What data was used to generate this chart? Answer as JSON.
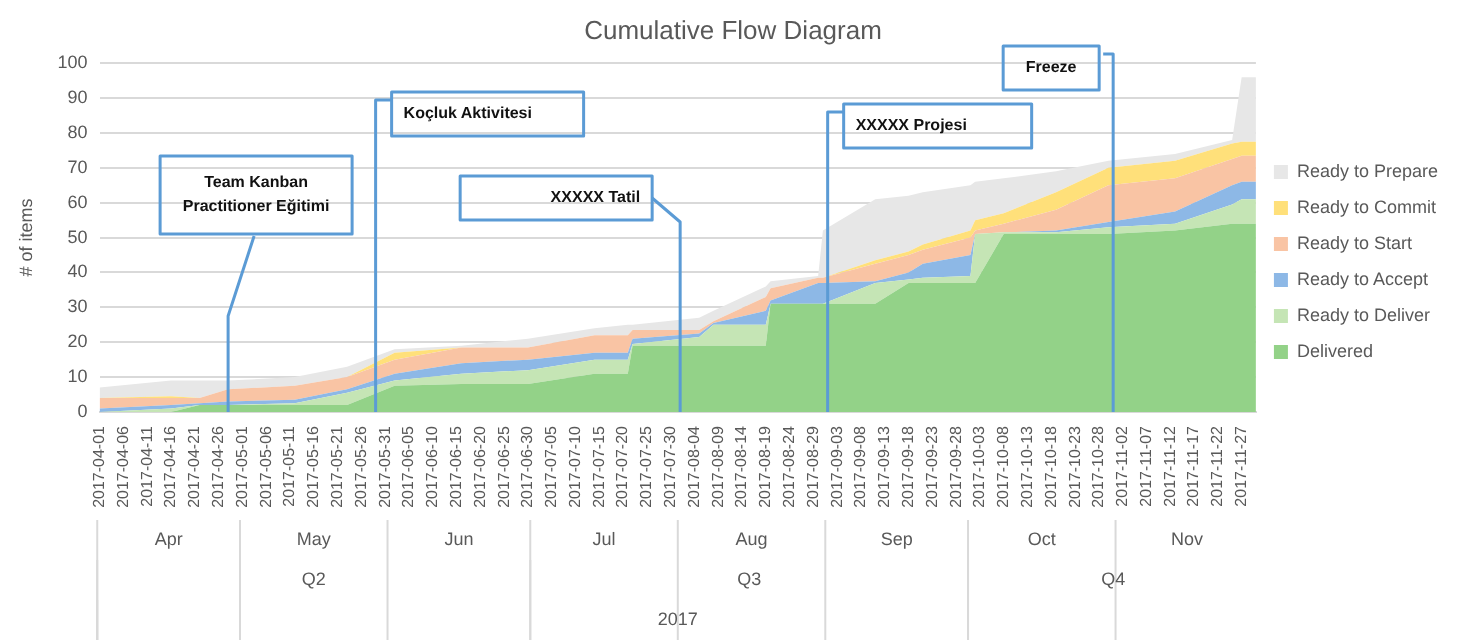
{
  "chart_data": {
    "type": "area",
    "title": "Cumulative Flow Diagram",
    "ylabel": "# of items",
    "stacked": true,
    "grid": "y",
    "legend": "right",
    "x": [
      "2017-04-01",
      "2017-04-16",
      "2017-04-22",
      "2017-04-28",
      "2017-05-12",
      "2017-05-23",
      "2017-06-02",
      "2017-06-16",
      "2017-06-30",
      "2017-07-14",
      "2017-07-21",
      "2017-07-22",
      "2017-08-05",
      "2017-08-08",
      "2017-08-19",
      "2017-08-20",
      "2017-08-30",
      "2017-08-31",
      "2017-09-11",
      "2017-09-18",
      "2017-09-21",
      "2017-10-01",
      "2017-10-02",
      "2017-10-08",
      "2017-10-19",
      "2017-10-30",
      "2017-11-13",
      "2017-11-25",
      "2017-11-27",
      "2017-11-30"
    ],
    "series": [
      {
        "name": "Delivered",
        "color": "#93d288",
        "values": [
          0,
          0,
          2,
          2,
          2,
          2,
          7.5,
          8,
          8,
          11,
          11,
          19,
          19,
          19,
          19,
          31,
          31,
          31,
          31,
          37,
          37,
          37,
          37,
          51,
          51,
          51,
          52,
          54,
          54,
          54
        ]
      },
      {
        "name": "Ready to Deliver",
        "color": "#c5e5b5",
        "values": [
          0,
          1,
          0,
          0,
          0.5,
          3.5,
          1.5,
          3,
          4,
          4,
          4,
          0.5,
          2.5,
          6,
          6,
          0,
          0,
          0,
          6,
          1,
          1.5,
          2,
          14,
          0.5,
          0.5,
          2,
          2,
          5.5,
          7,
          7
        ]
      },
      {
        "name": "Ready to Accept",
        "color": "#8db8e6",
        "values": [
          1,
          1,
          0.5,
          1,
          1,
          1,
          2,
          3,
          3,
          2,
          2,
          1.5,
          1,
          0.5,
          4,
          1,
          6,
          6,
          0.5,
          2,
          4,
          6,
          0,
          0,
          0.5,
          1.5,
          3.5,
          5.5,
          5,
          5
        ]
      },
      {
        "name": "Ready to Start",
        "color": "#f9c4a4",
        "values": [
          3,
          2,
          1.5,
          3.5,
          4,
          3.5,
          4,
          4.5,
          3.5,
          5,
          5,
          2.5,
          1,
          0.5,
          4,
          3.5,
          1.5,
          1.5,
          5,
          5,
          4,
          5,
          1,
          2.5,
          6,
          10.5,
          9.5,
          7.5,
          7.5,
          7.5
        ]
      },
      {
        "name": "Ready to Commit",
        "color": "#ffe07a",
        "values": [
          0,
          0.5,
          0,
          0,
          0,
          0,
          2,
          0,
          0,
          0,
          0,
          0,
          0,
          0,
          0,
          0,
          0,
          0,
          1,
          1,
          1.5,
          2,
          3,
          3,
          5,
          5,
          5,
          4.5,
          4,
          4
        ]
      },
      {
        "name": "Ready to Prepare",
        "color": "#e7e7e7",
        "values": [
          3,
          4.5,
          5,
          2.5,
          2.5,
          3,
          1,
          0.5,
          2.5,
          2,
          3,
          1.5,
          3.5,
          3,
          3,
          2,
          0.5,
          13.5,
          17.5,
          16,
          15,
          13,
          11,
          10,
          6,
          2,
          2,
          1,
          18.5,
          18.5
        ]
      }
    ],
    "xlim": [
      "2017-04-01",
      "2017-11-30"
    ],
    "xticks": [
      "2017-04-01",
      "2017-04-06",
      "2017-04-11",
      "2017-04-16",
      "2017-04-21",
      "2017-04-26",
      "2017-05-01",
      "2017-05-06",
      "2017-05-11",
      "2017-05-16",
      "2017-05-21",
      "2017-05-26",
      "2017-05-31",
      "2017-06-05",
      "2017-06-10",
      "2017-06-15",
      "2017-06-20",
      "2017-06-25",
      "2017-06-30",
      "2017-07-05",
      "2017-07-10",
      "2017-07-15",
      "2017-07-20",
      "2017-07-25",
      "2017-07-30",
      "2017-08-04",
      "2017-08-09",
      "2017-08-14",
      "2017-08-19",
      "2017-08-24",
      "2017-08-29",
      "2017-09-03",
      "2017-09-08",
      "2017-09-13",
      "2017-09-18",
      "2017-09-23",
      "2017-09-28",
      "2017-10-03",
      "2017-10-08",
      "2017-10-13",
      "2017-10-18",
      "2017-10-23",
      "2017-10-28",
      "2017-11-02",
      "2017-11-07",
      "2017-11-12",
      "2017-11-17",
      "2017-11-22",
      "2017-11-27"
    ],
    "ylim": [
      0,
      100
    ],
    "yticks": [
      0,
      10,
      20,
      30,
      40,
      50,
      60,
      70,
      80,
      90,
      100
    ],
    "ref_lines": [
      {
        "axis": "x",
        "value": "2017-04-28",
        "label": "Team Kanban Practitioner Eğitimi",
        "color": "#5b9bd5"
      },
      {
        "axis": "x",
        "value": "2017-05-29",
        "label": "Koçluk Aktivitesi",
        "color": "#5b9bd5"
      },
      {
        "axis": "x",
        "value": "2017-08-01",
        "label": "XXXXX Tatil",
        "color": "#5b9bd5"
      },
      {
        "axis": "x",
        "value": "2017-09-01",
        "label": "XXXXX Projesi",
        "color": "#5b9bd5"
      },
      {
        "axis": "x",
        "value": "2017-10-31",
        "label": "Freeze",
        "color": "#5b9bd5"
      }
    ],
    "annotations": [
      "Apr",
      "May",
      "Jun",
      "Jul",
      "Aug",
      "Sep",
      "Oct",
      "Nov",
      "Q2",
      "Q3",
      "Q4",
      "2017"
    ]
  }
}
